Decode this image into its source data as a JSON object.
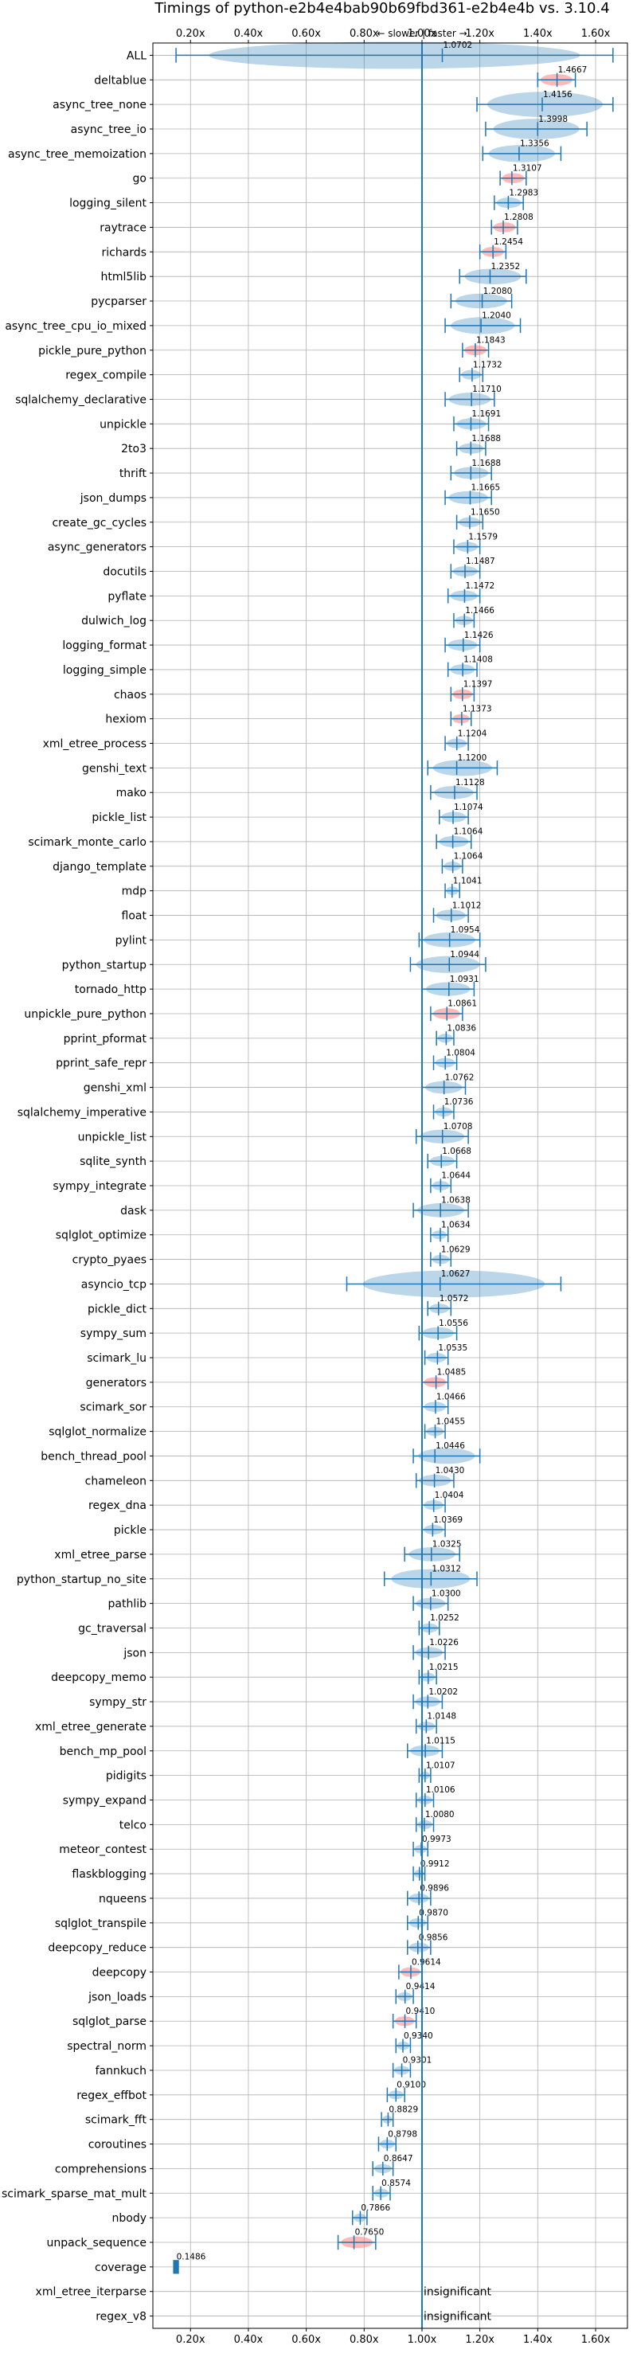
{
  "chart_data": {
    "type": "violin",
    "title": "Timings of python-e2b4e4bab90b69fbd361-e2b4e4b vs. 3.10.4",
    "direction_note": "← slower | faster →",
    "xlim": [
      0.07,
      1.71
    ],
    "xticks": [
      0.2,
      0.4,
      0.6,
      0.8,
      1.0,
      1.2,
      1.4,
      1.6
    ],
    "xtick_labels": [
      "0.20x",
      "0.40x",
      "0.60x",
      "0.80x",
      "1.00x",
      "1.20x",
      "1.40x",
      "1.60x"
    ],
    "grid": true,
    "reference_line": 1.0,
    "insignificant_label": "insignificant",
    "colors": {
      "violin": "#1f77b4",
      "significant_slower": "#ff7f7f",
      "ref_line": "#1f77b4"
    },
    "benchmarks": [
      {
        "name": "ALL",
        "value": 1.0702,
        "min": 0.15,
        "max": 1.66
      },
      {
        "name": "deltablue",
        "value": 1.4667,
        "min": 1.4,
        "max": 1.53,
        "hl": true
      },
      {
        "name": "async_tree_none",
        "value": 1.4156,
        "min": 1.19,
        "max": 1.66
      },
      {
        "name": "async_tree_io",
        "value": 1.3998,
        "min": 1.22,
        "max": 1.57
      },
      {
        "name": "async_tree_memoization",
        "value": 1.3356,
        "min": 1.21,
        "max": 1.48
      },
      {
        "name": "go",
        "value": 1.3107,
        "min": 1.27,
        "max": 1.36,
        "hl": true
      },
      {
        "name": "logging_silent",
        "value": 1.2983,
        "min": 1.25,
        "max": 1.35
      },
      {
        "name": "raytrace",
        "value": 1.2808,
        "min": 1.24,
        "max": 1.33,
        "hl": true
      },
      {
        "name": "richards",
        "value": 1.2454,
        "min": 1.2,
        "max": 1.29,
        "hl": true
      },
      {
        "name": "html5lib",
        "value": 1.2352,
        "min": 1.13,
        "max": 1.36
      },
      {
        "name": "pycparser",
        "value": 1.208,
        "min": 1.1,
        "max": 1.31
      },
      {
        "name": "async_tree_cpu_io_mixed",
        "value": 1.204,
        "min": 1.08,
        "max": 1.34
      },
      {
        "name": "pickle_pure_python",
        "value": 1.1843,
        "min": 1.14,
        "max": 1.23,
        "hl": true
      },
      {
        "name": "regex_compile",
        "value": 1.1732,
        "min": 1.13,
        "max": 1.21
      },
      {
        "name": "sqlalchemy_declarative",
        "value": 1.171,
        "min": 1.08,
        "max": 1.25
      },
      {
        "name": "unpickle",
        "value": 1.1691,
        "min": 1.11,
        "max": 1.23
      },
      {
        "name": "2to3",
        "value": 1.1688,
        "min": 1.12,
        "max": 1.22
      },
      {
        "name": "thrift",
        "value": 1.1688,
        "min": 1.1,
        "max": 1.24
      },
      {
        "name": "json_dumps",
        "value": 1.1665,
        "min": 1.08,
        "max": 1.24
      },
      {
        "name": "create_gc_cycles",
        "value": 1.165,
        "min": 1.12,
        "max": 1.21
      },
      {
        "name": "async_generators",
        "value": 1.1579,
        "min": 1.11,
        "max": 1.2
      },
      {
        "name": "docutils",
        "value": 1.1487,
        "min": 1.1,
        "max": 1.2
      },
      {
        "name": "pyflate",
        "value": 1.1472,
        "min": 1.09,
        "max": 1.2
      },
      {
        "name": "dulwich_log",
        "value": 1.1466,
        "min": 1.11,
        "max": 1.18
      },
      {
        "name": "logging_format",
        "value": 1.1426,
        "min": 1.08,
        "max": 1.2
      },
      {
        "name": "logging_simple",
        "value": 1.1408,
        "min": 1.09,
        "max": 1.19
      },
      {
        "name": "chaos",
        "value": 1.1397,
        "min": 1.1,
        "max": 1.18,
        "hl": true
      },
      {
        "name": "hexiom",
        "value": 1.1373,
        "min": 1.1,
        "max": 1.17,
        "hl": true
      },
      {
        "name": "xml_etree_process",
        "value": 1.1204,
        "min": 1.08,
        "max": 1.16
      },
      {
        "name": "genshi_text",
        "value": 1.12,
        "min": 1.02,
        "max": 1.26
      },
      {
        "name": "mako",
        "value": 1.1128,
        "min": 1.03,
        "max": 1.19
      },
      {
        "name": "pickle_list",
        "value": 1.1074,
        "min": 1.06,
        "max": 1.16
      },
      {
        "name": "scimark_monte_carlo",
        "value": 1.1064,
        "min": 1.05,
        "max": 1.17
      },
      {
        "name": "django_template",
        "value": 1.1064,
        "min": 1.07,
        "max": 1.14
      },
      {
        "name": "mdp",
        "value": 1.1041,
        "min": 1.08,
        "max": 1.13
      },
      {
        "name": "float",
        "value": 1.1012,
        "min": 1.04,
        "max": 1.16
      },
      {
        "name": "pylint",
        "value": 1.0954,
        "min": 0.99,
        "max": 1.2
      },
      {
        "name": "python_startup",
        "value": 1.0944,
        "min": 0.96,
        "max": 1.22
      },
      {
        "name": "tornado_http",
        "value": 1.0931,
        "min": 1.0,
        "max": 1.18
      },
      {
        "name": "unpickle_pure_python",
        "value": 1.0861,
        "min": 1.03,
        "max": 1.14,
        "hl": true
      },
      {
        "name": "pprint_pformat",
        "value": 1.0836,
        "min": 1.05,
        "max": 1.11
      },
      {
        "name": "pprint_safe_repr",
        "value": 1.0804,
        "min": 1.04,
        "max": 1.12
      },
      {
        "name": "genshi_xml",
        "value": 1.0762,
        "min": 1.0,
        "max": 1.15
      },
      {
        "name": "sqlalchemy_imperative",
        "value": 1.0736,
        "min": 1.04,
        "max": 1.11
      },
      {
        "name": "unpickle_list",
        "value": 1.0708,
        "min": 0.98,
        "max": 1.16
      },
      {
        "name": "sqlite_synth",
        "value": 1.0668,
        "min": 1.02,
        "max": 1.12
      },
      {
        "name": "sympy_integrate",
        "value": 1.0644,
        "min": 1.03,
        "max": 1.1
      },
      {
        "name": "dask",
        "value": 1.0638,
        "min": 0.97,
        "max": 1.16
      },
      {
        "name": "sqlglot_optimize",
        "value": 1.0634,
        "min": 1.03,
        "max": 1.09
      },
      {
        "name": "crypto_pyaes",
        "value": 1.0629,
        "min": 1.03,
        "max": 1.1
      },
      {
        "name": "asyncio_tcp",
        "value": 1.0627,
        "min": 0.74,
        "max": 1.48
      },
      {
        "name": "pickle_dict",
        "value": 1.0572,
        "min": 1.02,
        "max": 1.1
      },
      {
        "name": "sympy_sum",
        "value": 1.0556,
        "min": 0.99,
        "max": 1.12
      },
      {
        "name": "scimark_lu",
        "value": 1.0535,
        "min": 1.01,
        "max": 1.09
      },
      {
        "name": "generators",
        "value": 1.0485,
        "min": 1.0,
        "max": 1.09,
        "hl": true
      },
      {
        "name": "scimark_sor",
        "value": 1.0466,
        "min": 1.0,
        "max": 1.09
      },
      {
        "name": "sqlglot_normalize",
        "value": 1.0455,
        "min": 1.01,
        "max": 1.08
      },
      {
        "name": "bench_thread_pool",
        "value": 1.0446,
        "min": 0.97,
        "max": 1.2
      },
      {
        "name": "chameleon",
        "value": 1.043,
        "min": 0.98,
        "max": 1.11
      },
      {
        "name": "regex_dna",
        "value": 1.0404,
        "min": 1.0,
        "max": 1.08
      },
      {
        "name": "pickle",
        "value": 1.0369,
        "min": 1.0,
        "max": 1.08
      },
      {
        "name": "xml_etree_parse",
        "value": 1.0325,
        "min": 0.94,
        "max": 1.13
      },
      {
        "name": "python_startup_no_site",
        "value": 1.0312,
        "min": 0.87,
        "max": 1.19
      },
      {
        "name": "pathlib",
        "value": 1.03,
        "min": 0.97,
        "max": 1.09
      },
      {
        "name": "gc_traversal",
        "value": 1.0252,
        "min": 0.99,
        "max": 1.06
      },
      {
        "name": "json",
        "value": 1.0226,
        "min": 0.97,
        "max": 1.08
      },
      {
        "name": "deepcopy_memo",
        "value": 1.0215,
        "min": 0.99,
        "max": 1.05
      },
      {
        "name": "sympy_str",
        "value": 1.0202,
        "min": 0.97,
        "max": 1.07
      },
      {
        "name": "xml_etree_generate",
        "value": 1.0148,
        "min": 0.98,
        "max": 1.05
      },
      {
        "name": "bench_mp_pool",
        "value": 1.0115,
        "min": 0.95,
        "max": 1.07
      },
      {
        "name": "pidigits",
        "value": 1.0107,
        "min": 0.99,
        "max": 1.03
      },
      {
        "name": "sympy_expand",
        "value": 1.0106,
        "min": 0.98,
        "max": 1.04
      },
      {
        "name": "telco",
        "value": 1.008,
        "min": 0.98,
        "max": 1.04
      },
      {
        "name": "meteor_contest",
        "value": 0.9973,
        "min": 0.97,
        "max": 1.02
      },
      {
        "name": "flaskblogging",
        "value": 0.9912,
        "min": 0.97,
        "max": 1.01
      },
      {
        "name": "nqueens",
        "value": 0.9896,
        "min": 0.95,
        "max": 1.03
      },
      {
        "name": "sqlglot_transpile",
        "value": 0.987,
        "min": 0.95,
        "max": 1.02
      },
      {
        "name": "deepcopy_reduce",
        "value": 0.9856,
        "min": 0.95,
        "max": 1.03
      },
      {
        "name": "deepcopy",
        "value": 0.9614,
        "min": 0.92,
        "max": 1.0,
        "hl": true
      },
      {
        "name": "json_loads",
        "value": 0.9414,
        "min": 0.91,
        "max": 0.97
      },
      {
        "name": "sqlglot_parse",
        "value": 0.941,
        "min": 0.9,
        "max": 0.98,
        "hl": true
      },
      {
        "name": "spectral_norm",
        "value": 0.934,
        "min": 0.91,
        "max": 0.96
      },
      {
        "name": "fannkuch",
        "value": 0.9301,
        "min": 0.9,
        "max": 0.96
      },
      {
        "name": "regex_effbot",
        "value": 0.91,
        "min": 0.88,
        "max": 0.94
      },
      {
        "name": "scimark_fft",
        "value": 0.8829,
        "min": 0.86,
        "max": 0.9
      },
      {
        "name": "coroutines",
        "value": 0.8798,
        "min": 0.85,
        "max": 0.91
      },
      {
        "name": "comprehensions",
        "value": 0.8647,
        "min": 0.83,
        "max": 0.9
      },
      {
        "name": "scimark_sparse_mat_mult",
        "value": 0.8574,
        "min": 0.83,
        "max": 0.89
      },
      {
        "name": "nbody",
        "value": 0.7866,
        "min": 0.76,
        "max": 0.81
      },
      {
        "name": "unpack_sequence",
        "value": 0.765,
        "min": 0.71,
        "max": 0.84,
        "hl": true
      },
      {
        "name": "coverage",
        "value": 0.1486,
        "min": 0.14,
        "max": 0.16
      },
      {
        "name": "xml_etree_iterparse",
        "value": null,
        "status": "insignificant"
      },
      {
        "name": "regex_v8",
        "value": null,
        "status": "insignificant"
      }
    ]
  }
}
